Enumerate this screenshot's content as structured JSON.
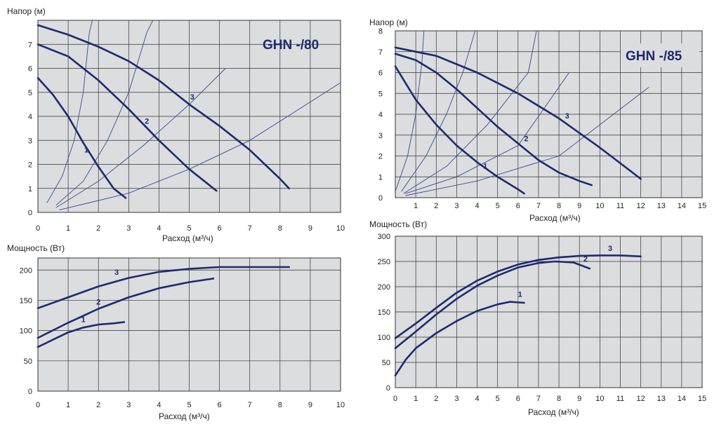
{
  "colors": {
    "curve": "#1e2a6e",
    "thin": "#3b4a8a",
    "plot_bg": "#dcdddf",
    "grid": "#333333"
  },
  "chart_data": [
    {
      "id": "head80",
      "type": "line",
      "title": "GHN -/80",
      "ylabel": "Напор (м)",
      "xlabel": "Расход (м³/ч)",
      "xlim": [
        0,
        10
      ],
      "ylim": [
        0,
        8
      ],
      "xticks": [
        "0",
        "1",
        "2",
        "3",
        "4",
        "5",
        "6",
        "7",
        "8",
        "9",
        "10"
      ],
      "yticks": [
        "0",
        "1",
        "2",
        "3",
        "4",
        "5",
        "6",
        "7"
      ],
      "series": [
        {
          "name": "1",
          "points": [
            [
              0,
              5.6
            ],
            [
              0.5,
              4.9
            ],
            [
              1,
              4.0
            ],
            [
              1.5,
              2.9
            ],
            [
              2,
              1.9
            ],
            [
              2.5,
              1.0
            ],
            [
              2.9,
              0.6
            ]
          ]
        },
        {
          "name": "2",
          "points": [
            [
              0,
              7.0
            ],
            [
              1,
              6.5
            ],
            [
              2,
              5.5
            ],
            [
              3,
              4.3
            ],
            [
              4,
              3.0
            ],
            [
              5,
              1.8
            ],
            [
              5.9,
              0.9
            ]
          ]
        },
        {
          "name": "3",
          "points": [
            [
              0,
              7.8
            ],
            [
              1,
              7.4
            ],
            [
              2,
              6.9
            ],
            [
              3,
              6.3
            ],
            [
              4,
              5.5
            ],
            [
              5,
              4.5
            ],
            [
              6,
              3.6
            ],
            [
              7,
              2.6
            ],
            [
              8,
              1.4
            ],
            [
              8.3,
              1.0
            ]
          ]
        }
      ],
      "curve_labels": [
        {
          "text": "1",
          "x": 1.6,
          "y": 2.5
        },
        {
          "text": "2",
          "x": 3.6,
          "y": 3.7
        },
        {
          "text": "3",
          "x": 5.1,
          "y": 4.7
        }
      ],
      "system_curves": [
        [
          [
            0.3,
            0.4
          ],
          [
            0.8,
            1.5
          ],
          [
            1.2,
            3.0
          ],
          [
            1.5,
            5.0
          ],
          [
            1.7,
            7.5
          ],
          [
            1.8,
            8.0
          ]
        ],
        [
          [
            0.6,
            0.3
          ],
          [
            1.5,
            1.3
          ],
          [
            2.3,
            3.0
          ],
          [
            3.0,
            5.0
          ],
          [
            3.6,
            7.5
          ],
          [
            3.8,
            8.0
          ]
        ],
        [
          [
            0.6,
            0.2
          ],
          [
            2,
            1.3
          ],
          [
            3.5,
            2.8
          ],
          [
            5,
            4.5
          ],
          [
            6.2,
            6.0
          ]
        ],
        [
          [
            0.7,
            0.1
          ],
          [
            3,
            0.8
          ],
          [
            5,
            1.8
          ],
          [
            7,
            3.0
          ],
          [
            8.5,
            4.2
          ],
          [
            10,
            5.4
          ]
        ]
      ]
    },
    {
      "id": "head85",
      "type": "line",
      "title": "GHN -/85",
      "ylabel": "Напор (м)",
      "xlabel": "Расход (м³/ч)",
      "xlim": [
        0,
        15
      ],
      "ylim": [
        0,
        8
      ],
      "xticks": [
        "1",
        "2",
        "3",
        "4",
        "5",
        "6",
        "7",
        "8",
        "9",
        "10",
        "11",
        "12",
        "13",
        "14",
        "15"
      ],
      "yticks": [
        "0",
        "1",
        "2",
        "3",
        "4",
        "5",
        "6",
        "7",
        "8"
      ],
      "series": [
        {
          "name": "1",
          "points": [
            [
              0,
              6.3
            ],
            [
              1,
              4.7
            ],
            [
              2,
              3.5
            ],
            [
              3,
              2.5
            ],
            [
              4,
              1.7
            ],
            [
              5,
              1.0
            ],
            [
              6,
              0.4
            ],
            [
              6.3,
              0.2
            ]
          ]
        },
        {
          "name": "2",
          "points": [
            [
              0,
              6.9
            ],
            [
              1,
              6.6
            ],
            [
              2,
              6.0
            ],
            [
              3,
              5.2
            ],
            [
              4,
              4.3
            ],
            [
              5,
              3.4
            ],
            [
              6,
              2.6
            ],
            [
              7,
              1.8
            ],
            [
              8,
              1.2
            ],
            [
              9,
              0.8
            ],
            [
              9.6,
              0.6
            ]
          ]
        },
        {
          "name": "3",
          "points": [
            [
              0,
              7.2
            ],
            [
              2,
              6.8
            ],
            [
              4,
              6.0
            ],
            [
              6,
              5.0
            ],
            [
              8,
              3.8
            ],
            [
              10,
              2.4
            ],
            [
              12,
              0.9
            ]
          ]
        }
      ],
      "curve_labels": [
        {
          "text": "1",
          "x": 4.4,
          "y": 1.4
        },
        {
          "text": "2",
          "x": 6.4,
          "y": 2.7
        },
        {
          "text": "3",
          "x": 8.4,
          "y": 3.8
        }
      ],
      "system_curves": [
        [
          [
            0,
            0.3
          ],
          [
            0.6,
            2.0
          ],
          [
            1.0,
            4.0
          ],
          [
            1.3,
            6.5
          ],
          [
            1.4,
            8.0
          ]
        ],
        [
          [
            0.3,
            0.3
          ],
          [
            1.5,
            2.0
          ],
          [
            2.5,
            4.0
          ],
          [
            3.3,
            6.0
          ],
          [
            3.9,
            8.0
          ]
        ],
        [
          [
            0.4,
            0.2
          ],
          [
            2.5,
            1.5
          ],
          [
            4.5,
            3.5
          ],
          [
            6.5,
            6.0
          ],
          [
            6.9,
            8.0
          ]
        ],
        [
          [
            0.5,
            0.2
          ],
          [
            3,
            1.0
          ],
          [
            6,
            2.5
          ],
          [
            8.5,
            6.0
          ]
        ],
        [
          [
            0.5,
            0.1
          ],
          [
            4,
            0.8
          ],
          [
            8,
            2.0
          ],
          [
            12.4,
            5.3
          ]
        ]
      ]
    },
    {
      "id": "power80",
      "type": "line",
      "ylabel": "Мощность (Вт)",
      "xlabel": "Расход (м³/ч)",
      "xlim": [
        0,
        10
      ],
      "ylim": [
        0,
        220
      ],
      "xticks": [
        "0",
        "1",
        "2",
        "3",
        "4",
        "5",
        "6",
        "7",
        "8",
        "9",
        "10"
      ],
      "yticks": [
        "0",
        "50",
        "100",
        "150",
        "200"
      ],
      "series": [
        {
          "name": "1",
          "points": [
            [
              0,
              73
            ],
            [
              0.5,
              85
            ],
            [
              1,
              97
            ],
            [
              1.5,
              105
            ],
            [
              2,
              110
            ],
            [
              2.5,
              112
            ],
            [
              2.85,
              114
            ]
          ]
        },
        {
          "name": "2",
          "points": [
            [
              0,
              88
            ],
            [
              1,
              113
            ],
            [
              2,
              136
            ],
            [
              3,
              155
            ],
            [
              4,
              170
            ],
            [
              5,
              180
            ],
            [
              5.8,
              186
            ]
          ]
        },
        {
          "name": "3",
          "points": [
            [
              0,
              137
            ],
            [
              1,
              155
            ],
            [
              2,
              173
            ],
            [
              3,
              187
            ],
            [
              4,
              197
            ],
            [
              5,
              202
            ],
            [
              6,
              205
            ],
            [
              7,
              205
            ],
            [
              8.3,
              205
            ]
          ]
        }
      ],
      "curve_labels": [
        {
          "text": "1",
          "x": 1.5,
          "y": 114
        },
        {
          "text": "2",
          "x": 2.0,
          "y": 143
        },
        {
          "text": "3",
          "x": 2.6,
          "y": 192
        }
      ]
    },
    {
      "id": "power85",
      "type": "line",
      "ylabel": "Мощность (Вт)",
      "xlabel": "Расход (м³/ч)",
      "xlim": [
        0,
        15
      ],
      "ylim": [
        0,
        300
      ],
      "xticks": [
        "0",
        "1",
        "2",
        "3",
        "4",
        "5",
        "6",
        "7",
        "8",
        "9",
        "10",
        "11",
        "12",
        "13",
        "14",
        "15"
      ],
      "yticks": [
        "0",
        "50",
        "100",
        "150",
        "200",
        "250",
        "300"
      ],
      "series": [
        {
          "name": "1",
          "points": [
            [
              0,
              24
            ],
            [
              0.5,
              55
            ],
            [
              1,
              78
            ],
            [
              2,
              108
            ],
            [
              3,
              132
            ],
            [
              4,
              152
            ],
            [
              5,
              165
            ],
            [
              5.6,
              170
            ],
            [
              6.3,
              168
            ]
          ]
        },
        {
          "name": "2",
          "points": [
            [
              0,
              78
            ],
            [
              1,
              111
            ],
            [
              2,
              145
            ],
            [
              3,
              176
            ],
            [
              4,
              202
            ],
            [
              5,
              222
            ],
            [
              6,
              238
            ],
            [
              7,
              247
            ],
            [
              7.8,
              250
            ],
            [
              8.7,
              248
            ],
            [
              9.5,
              236
            ]
          ]
        },
        {
          "name": "3",
          "points": [
            [
              0,
              98
            ],
            [
              1,
              127
            ],
            [
              2,
              158
            ],
            [
              3,
              188
            ],
            [
              4,
              212
            ],
            [
              5,
              230
            ],
            [
              6,
              244
            ],
            [
              7,
              253
            ],
            [
              8,
              258
            ],
            [
              9,
              261
            ],
            [
              10,
              262
            ],
            [
              11,
              262
            ],
            [
              12,
              260
            ]
          ]
        }
      ],
      "curve_labels": [
        {
          "text": "1",
          "x": 6.1,
          "y": 180
        },
        {
          "text": "2",
          "x": 9.3,
          "y": 250
        },
        {
          "text": "3",
          "x": 10.5,
          "y": 271
        }
      ]
    }
  ]
}
